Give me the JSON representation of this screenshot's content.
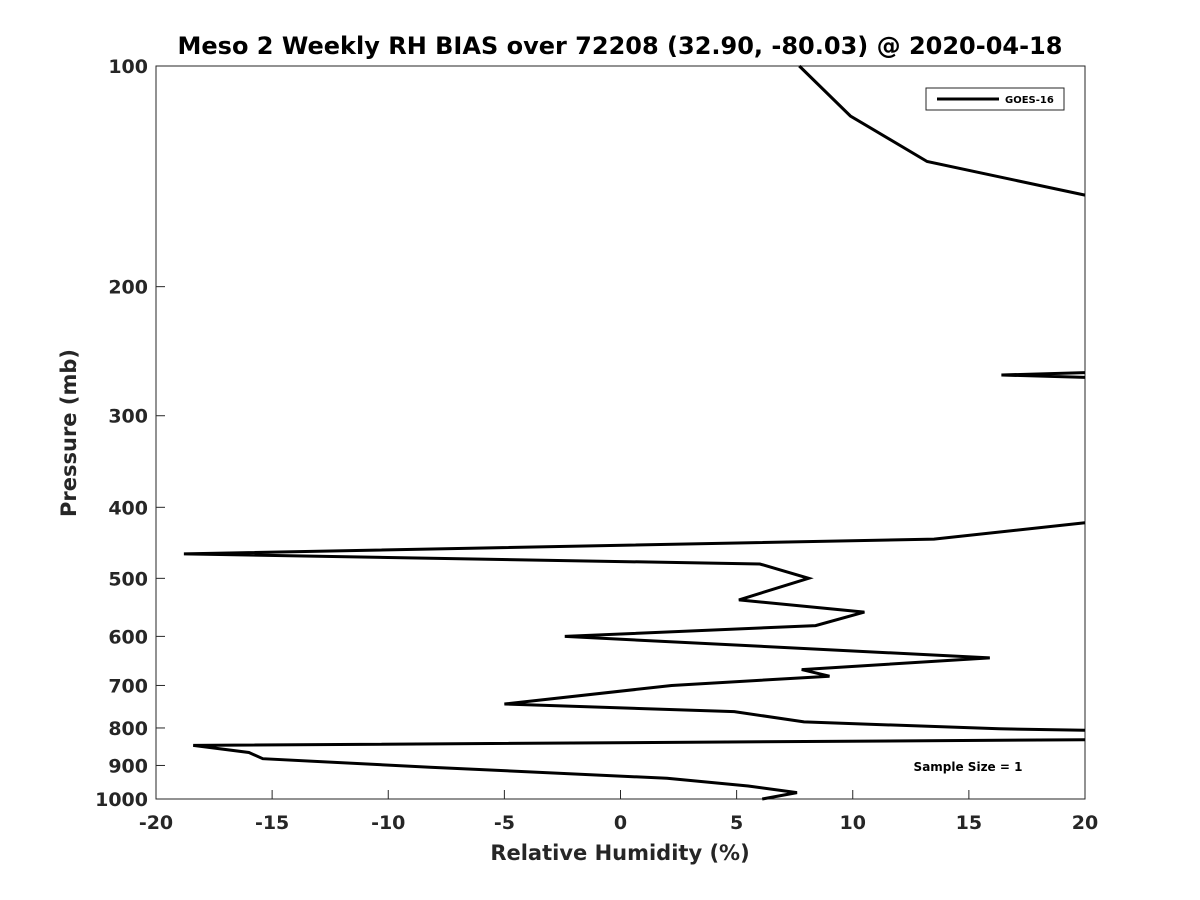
{
  "chart_data": {
    "type": "line",
    "title": "Meso 2 Weekly RH BIAS over 72208 (32.90, -80.03) @ 2020-04-18",
    "xlabel": "Relative Humidity (%)",
    "ylabel": "Pressure (mb)",
    "xlim": [
      -20,
      20
    ],
    "ylim": [
      100,
      1000
    ],
    "y_scale": "log",
    "y_reversed": true,
    "grid": false,
    "legend_position": "top-right",
    "x_ticks": [
      -20,
      -15,
      -10,
      -5,
      0,
      5,
      10,
      15,
      20
    ],
    "y_ticks": [
      100,
      200,
      300,
      400,
      500,
      600,
      700,
      800,
      900,
      1000
    ],
    "annotation": "Sample Size = 1",
    "line_color": "#000000",
    "series": [
      {
        "name": "GOES-16",
        "points": [
          {
            "x": 7.7,
            "y": 100
          },
          {
            "x": 9.9,
            "y": 117
          },
          {
            "x": 13.2,
            "y": 135
          },
          {
            "x": 20.0,
            "y": 150
          },
          {
            "x": null,
            "y": null
          },
          {
            "x": 20.0,
            "y": 262
          },
          {
            "x": 16.4,
            "y": 264
          },
          {
            "x": 20.0,
            "y": 266
          },
          {
            "x": null,
            "y": null
          },
          {
            "x": 20.0,
            "y": 420
          },
          {
            "x": 13.5,
            "y": 442
          },
          {
            "x": -18.8,
            "y": 463
          },
          {
            "x": 6.0,
            "y": 478
          },
          {
            "x": 8.1,
            "y": 500
          },
          {
            "x": 5.1,
            "y": 535
          },
          {
            "x": 10.5,
            "y": 556
          },
          {
            "x": 8.4,
            "y": 580
          },
          {
            "x": -2.4,
            "y": 600
          },
          {
            "x": 15.9,
            "y": 642
          },
          {
            "x": 7.8,
            "y": 666
          },
          {
            "x": 9.0,
            "y": 680
          },
          {
            "x": 2.2,
            "y": 700
          },
          {
            "x": -5.0,
            "y": 742
          },
          {
            "x": 4.9,
            "y": 760
          },
          {
            "x": 7.9,
            "y": 785
          },
          {
            "x": 16.3,
            "y": 802
          },
          {
            "x": 20.0,
            "y": 806
          },
          {
            "x": null,
            "y": null
          },
          {
            "x": 20.0,
            "y": 830
          },
          {
            "x": -18.4,
            "y": 845
          },
          {
            "x": -16.0,
            "y": 864
          },
          {
            "x": -15.4,
            "y": 881
          },
          {
            "x": -8.2,
            "y": 905
          },
          {
            "x": 2.0,
            "y": 937
          },
          {
            "x": 5.5,
            "y": 960
          },
          {
            "x": 7.6,
            "y": 980
          },
          {
            "x": 6.1,
            "y": 1000
          }
        ]
      }
    ]
  }
}
